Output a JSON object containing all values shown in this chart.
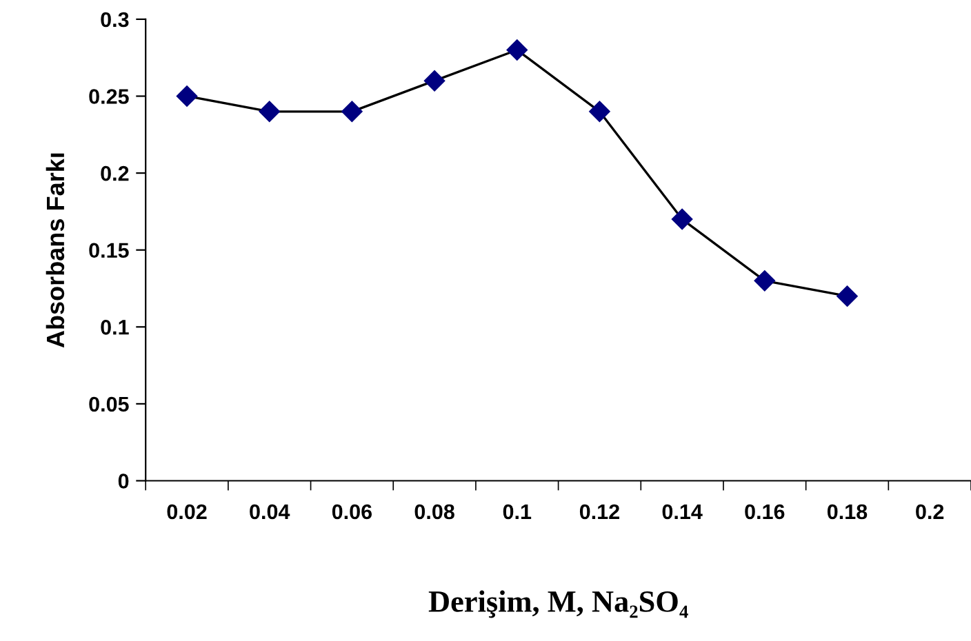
{
  "chart_data": {
    "type": "line",
    "xlabel": "Derişim, M, Na₂SO₄",
    "ylabel": "Absorbans Farkı",
    "categories": [
      "0.02",
      "0.04",
      "0.06",
      "0.08",
      "0.1",
      "0.12",
      "0.14",
      "0.16",
      "0.18",
      "0.2"
    ],
    "series": [
      {
        "color": "#000080",
        "values": [
          0.25,
          0.24,
          0.24,
          0.26,
          0.28,
          0.24,
          0.17,
          0.13,
          0.12,
          null
        ]
      }
    ],
    "ylim": [
      0,
      0.3
    ],
    "yticks": [
      0,
      0.05,
      0.1,
      0.15,
      0.2,
      0.25,
      0.3
    ],
    "grid": false,
    "legend": false,
    "marker": "diamond",
    "line_style": "solid"
  }
}
